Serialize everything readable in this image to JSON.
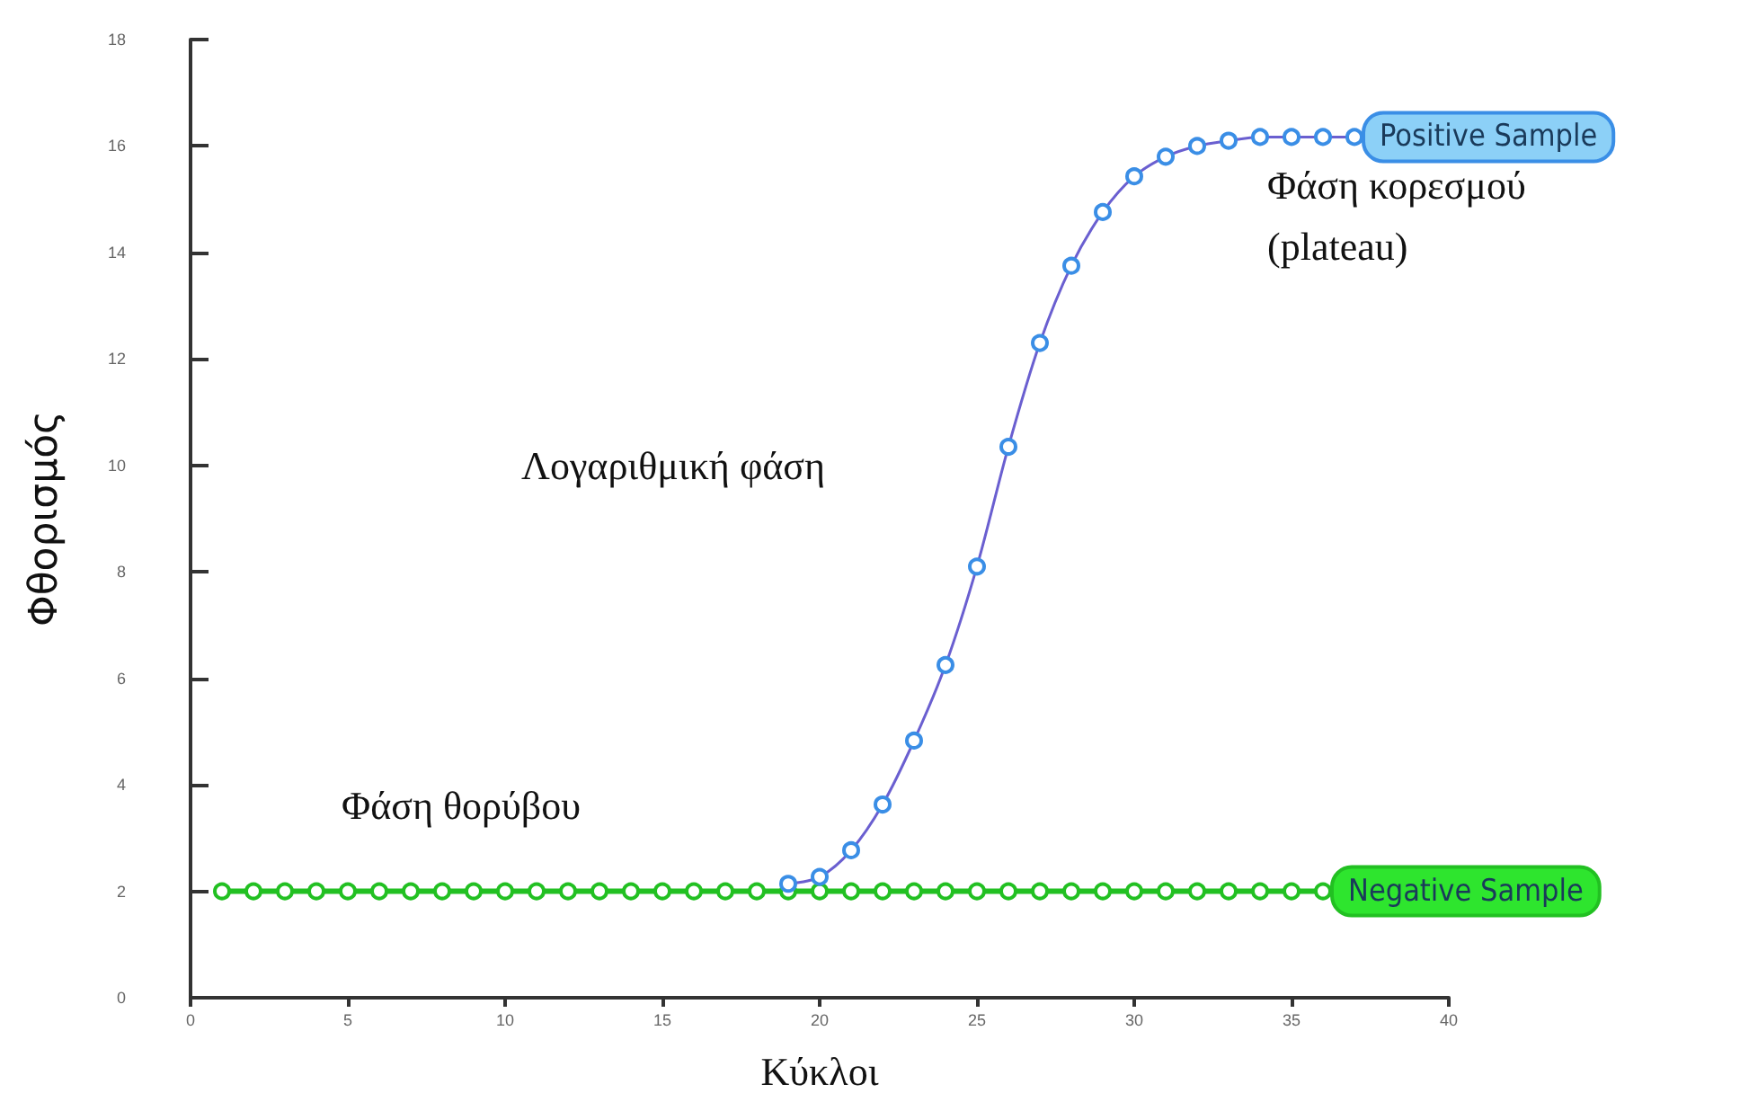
{
  "chart_data": {
    "type": "line",
    "xlabel": "Κύκλοι",
    "ylabel": "Φθορισμός",
    "xlim": [
      0,
      40
    ],
    "xticks": [
      0,
      5,
      10,
      15,
      20,
      25,
      30,
      35,
      40
    ],
    "ylim": [
      0,
      18
    ],
    "yticks": [
      0,
      2,
      4,
      6,
      8,
      10,
      12,
      14,
      16,
      18
    ],
    "grid": false,
    "legend": false,
    "marker": "circle",
    "line_style": "solid",
    "series": [
      {
        "name": "Negative Sample",
        "color": "#22c022",
        "x": [
          1,
          2,
          3,
          4,
          5,
          6,
          7,
          8,
          9,
          10,
          11,
          12,
          13,
          14,
          15,
          16,
          17,
          18,
          19,
          20,
          21,
          22,
          23,
          24,
          25,
          26,
          27,
          28,
          29,
          30,
          31,
          32,
          33,
          34,
          35,
          36
        ],
        "values": [
          2,
          2,
          2,
          2,
          2,
          2,
          2,
          2,
          2,
          2,
          2,
          2,
          2,
          2,
          2,
          2,
          2,
          2,
          2,
          2,
          2,
          2,
          2,
          2,
          2,
          2,
          2,
          2,
          2,
          2,
          2,
          2,
          2,
          2,
          2,
          2
        ]
      },
      {
        "name": "Positive Sample",
        "color": "#3a8ee6",
        "x": [
          19,
          20,
          21,
          22,
          23,
          24,
          25,
          26,
          27,
          28,
          29,
          30,
          31,
          32,
          33,
          34,
          35,
          36,
          37
        ],
        "values": [
          2.14,
          2.27,
          2.77,
          3.63,
          4.83,
          6.25,
          8.1,
          10.35,
          12.3,
          13.75,
          14.76,
          15.43,
          15.8,
          16.0,
          16.1,
          16.17,
          16.17,
          16.17,
          16.17
        ]
      }
    ],
    "annotations": [
      "Φάση θορύβου",
      "Λογαριθμική φάση",
      "Φάση κορεσμού\n(plateau)"
    ]
  }
}
